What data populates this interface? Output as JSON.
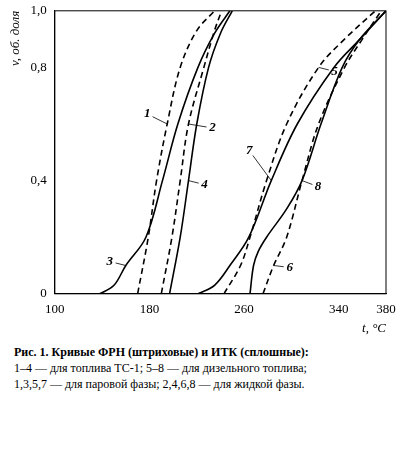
{
  "chart_data": {
    "type": "line",
    "x_label": "t, °C",
    "y_label": "v, об. доля",
    "caption": [
      "Рис. 1. Кривые ФРН (штриховые) и ИТК (сплошные):",
      "1–4 — для топлива ТС-1; 5–8 — для дизельного топлива;",
      "1,3,5,7 — для паровой фазы; 2,4,6,8 — для жидкой фазы."
    ],
    "xlim": [
      100,
      380
    ],
    "xticks": [
      100,
      180,
      260,
      340,
      380
    ],
    "ylim": [
      0,
      1.0
    ],
    "yticks": [
      0,
      {
        "value": 0.4,
        "label": "0,4"
      },
      {
        "value": 0.8,
        "label": "0,8"
      },
      {
        "value": 1.0,
        "label": "1,0"
      }
    ],
    "grid": false,
    "series": [
      {
        "name": "1",
        "color": "#000000",
        "line_style": "dashed",
        "x": [
          170,
          179,
          186,
          195,
          206,
          220,
          235
        ],
        "values": [
          0,
          0.2,
          0.4,
          0.6,
          0.8,
          0.93,
          1.0
        ]
      },
      {
        "name": "2",
        "color": "#000000",
        "line_style": "dashed",
        "x": [
          190,
          199,
          206,
          213,
          226,
          235,
          241
        ],
        "values": [
          0,
          0.2,
          0.4,
          0.6,
          0.8,
          0.93,
          1.0
        ]
      },
      {
        "name": "3",
        "color": "#000000",
        "line_style": "solid",
        "x": [
          138,
          150,
          160,
          177,
          191,
          204,
          221,
          235,
          248
        ],
        "values": [
          0,
          0.03,
          0.1,
          0.2,
          0.4,
          0.6,
          0.8,
          0.92,
          1.0
        ]
      },
      {
        "name": "4",
        "color": "#000000",
        "line_style": "solid",
        "x": [
          197,
          206,
          213,
          220,
          230,
          240,
          250
        ],
        "values": [
          0,
          0.2,
          0.4,
          0.6,
          0.8,
          0.92,
          1.0
        ]
      },
      {
        "name": "5",
        "color": "#000000",
        "line_style": "dashed",
        "x": [
          243,
          257,
          265,
          279,
          296,
          323,
          345,
          371
        ],
        "values": [
          0,
          0.1,
          0.2,
          0.4,
          0.6,
          0.8,
          0.9,
          1.0
        ]
      },
      {
        "name": "6",
        "color": "#000000",
        "line_style": "dashed",
        "x": [
          276,
          285,
          296,
          309,
          323,
          345,
          360,
          376
        ],
        "values": [
          0,
          0.1,
          0.2,
          0.4,
          0.6,
          0.8,
          0.9,
          1.0
        ]
      },
      {
        "name": "7",
        "color": "#000000",
        "line_style": "solid",
        "x": [
          221,
          235,
          248,
          264,
          283,
          305,
          336,
          358,
          380
        ],
        "values": [
          0,
          0.03,
          0.1,
          0.2,
          0.4,
          0.6,
          0.8,
          0.9,
          1.0
        ]
      },
      {
        "name": "8",
        "color": "#000000",
        "line_style": "solid",
        "x": [
          265,
          268,
          272,
          279,
          296,
          309,
          325,
          343,
          358,
          380
        ],
        "values": [
          0,
          0.1,
          0.15,
          0.2,
          0.3,
          0.4,
          0.6,
          0.8,
          0.9,
          1.0
        ]
      }
    ]
  }
}
